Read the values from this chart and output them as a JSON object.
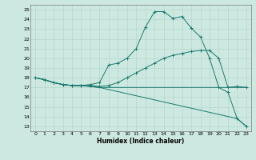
{
  "title": "",
  "xlabel": "Humidex (Indice chaleur)",
  "xlim": [
    -0.5,
    23.5
  ],
  "ylim": [
    12.5,
    25.5
  ],
  "xticks": [
    0,
    1,
    2,
    3,
    4,
    5,
    6,
    7,
    8,
    9,
    10,
    11,
    12,
    13,
    14,
    15,
    16,
    17,
    18,
    19,
    20,
    21,
    22,
    23
  ],
  "yticks": [
    13,
    14,
    15,
    16,
    17,
    18,
    19,
    20,
    21,
    22,
    23,
    24,
    25
  ],
  "bg_color": "#cde8e0",
  "line_color": "#1a7a6e",
  "grid_color": "#afd4ca",
  "line1_x": [
    0,
    1,
    2,
    3,
    4,
    5,
    6,
    7,
    8,
    9,
    10,
    11,
    12,
    13,
    14,
    15,
    16,
    17,
    18,
    19,
    20,
    21,
    22,
    23
  ],
  "line1_y": [
    18,
    17.8,
    17.5,
    17.3,
    17.2,
    17.2,
    17.3,
    17.5,
    19.3,
    19.5,
    20.0,
    21.0,
    23.2,
    24.8,
    24.8,
    24.1,
    24.3,
    23.1,
    22.2,
    20.0,
    17.0,
    16.5,
    13.8,
    13.0
  ],
  "line2_x": [
    0,
    1,
    2,
    3,
    4,
    5,
    6,
    7,
    8,
    9,
    10,
    11,
    12,
    13,
    14,
    15,
    16,
    17,
    18,
    19,
    20,
    21,
    22,
    23
  ],
  "line2_y": [
    18,
    17.8,
    17.5,
    17.3,
    17.2,
    17.2,
    17.2,
    17.1,
    17.2,
    17.5,
    18.0,
    18.5,
    19.0,
    19.5,
    20.0,
    20.3,
    20.5,
    20.7,
    20.8,
    20.8,
    20.0,
    17.0,
    17.1,
    17.0
  ],
  "line3_x": [
    0,
    1,
    2,
    3,
    4,
    5,
    6,
    7,
    8,
    9,
    10,
    11,
    12,
    13,
    14,
    15,
    16,
    17,
    18,
    19,
    20,
    21,
    22,
    23
  ],
  "line3_y": [
    18,
    17.8,
    17.5,
    17.3,
    17.2,
    17.2,
    17.1,
    17.0,
    17.0,
    17.0,
    17.0,
    17.0,
    17.0,
    17.0,
    17.0,
    17.0,
    17.0,
    17.0,
    17.0,
    17.0,
    17.0,
    17.0,
    17.0,
    17.0
  ],
  "line4_x": [
    0,
    1,
    2,
    3,
    4,
    5,
    6,
    7,
    22,
    23
  ],
  "line4_y": [
    18,
    17.8,
    17.5,
    17.3,
    17.2,
    17.2,
    17.1,
    17.0,
    13.8,
    13.0
  ]
}
